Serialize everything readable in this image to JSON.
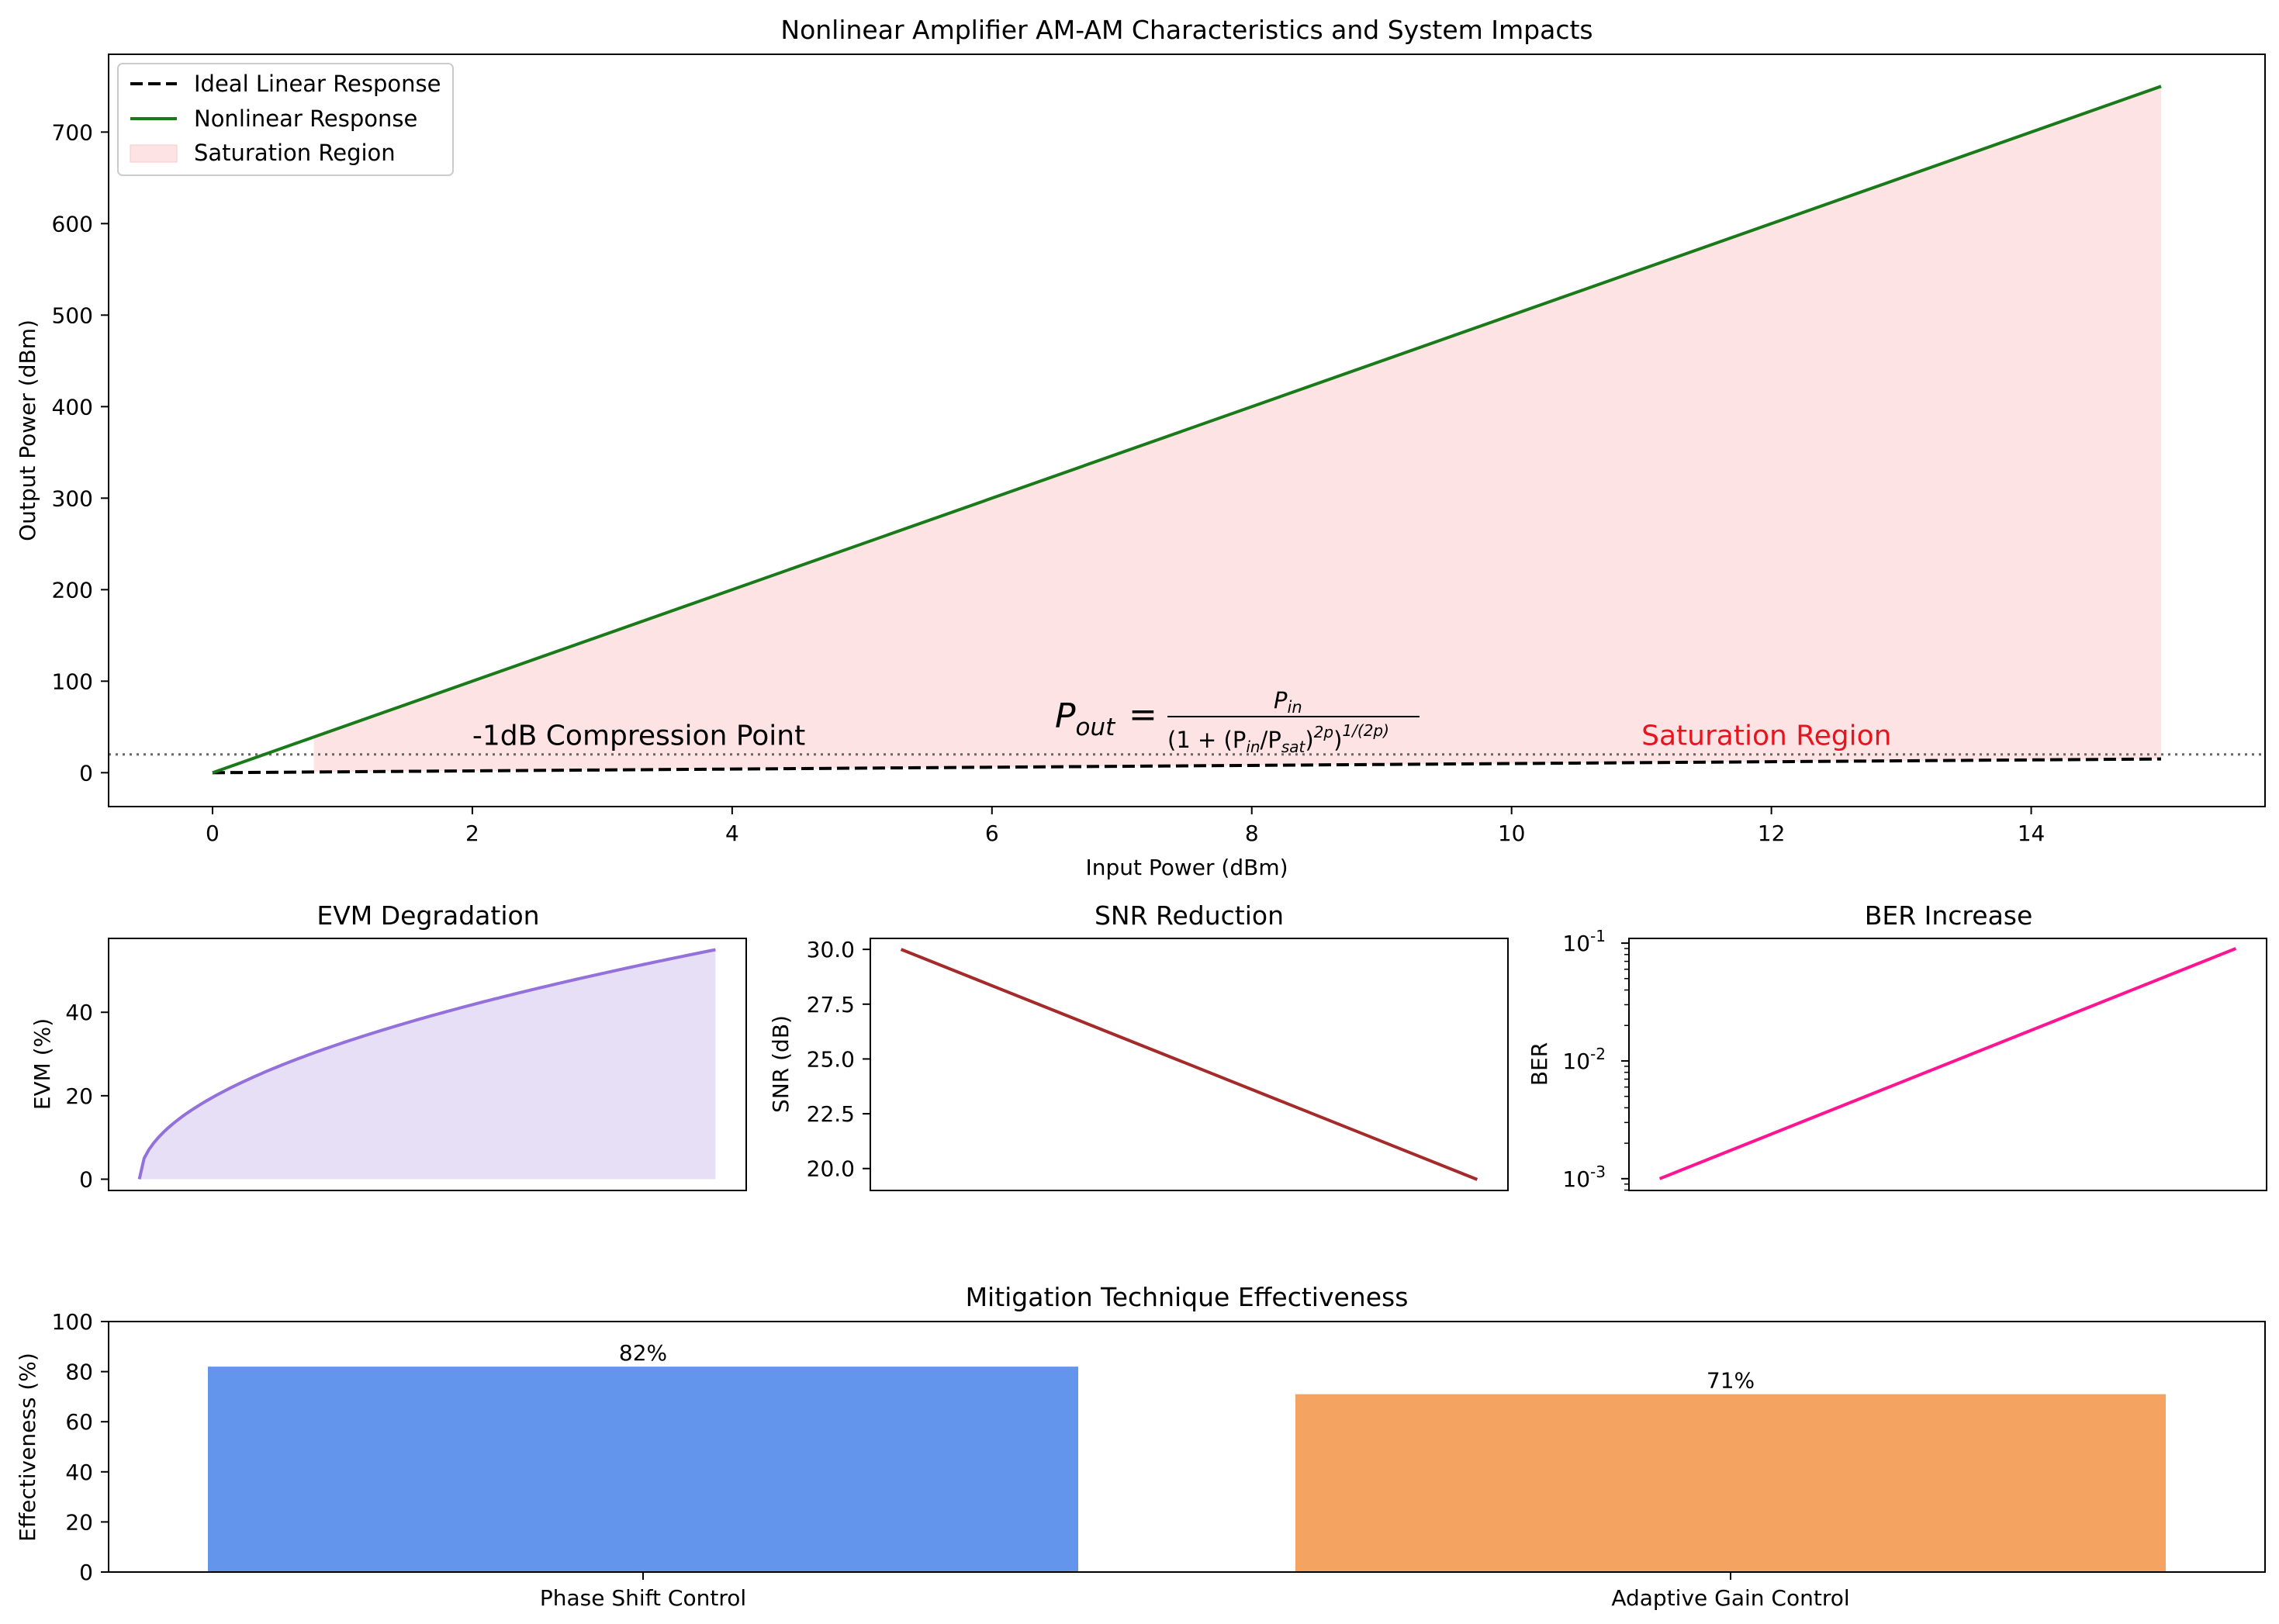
{
  "chart_data": [
    {
      "type": "line",
      "title": "Nonlinear Amplifier AM-AM Characteristics and System Impacts",
      "xlabel": "Input Power (dBm)",
      "ylabel": "Output Power (dBm)",
      "xlim": [
        -0.8,
        15.8
      ],
      "ylim": [
        -37,
        785
      ],
      "xticks": [
        0,
        2,
        4,
        6,
        8,
        10,
        12,
        14
      ],
      "yticks": [
        0,
        100,
        200,
        300,
        400,
        500,
        600,
        700
      ],
      "series": [
        {
          "name": "Ideal Linear Response",
          "x": [
            0,
            15
          ],
          "y": [
            0,
            15
          ],
          "color": "#000000",
          "style": "dashed"
        },
        {
          "name": "Nonlinear Response",
          "x": [
            0,
            15
          ],
          "y": [
            0,
            750
          ],
          "color": "#1a7a1a",
          "style": "solid"
        }
      ],
      "saturation_fill": {
        "name": "Saturation Region",
        "x_start": 0.78,
        "x_end": 15,
        "color": "#fde3e4"
      },
      "compression_line": {
        "y": 20,
        "color": "#666666"
      },
      "legend": [
        "Ideal Linear Response",
        "Nonlinear Response",
        "Saturation Region"
      ],
      "legend_position": "upper left",
      "annotations": {
        "compression": {
          "text": "-1dB Compression Point",
          "x": 2,
          "y": 20
        },
        "saturation": {
          "text": "Saturation Region",
          "x": 11,
          "y": 20,
          "color": "#e8141d"
        },
        "formula": {
          "lhs_p": "P",
          "lhs_sub": "out",
          "eq": "=",
          "num_p": "P",
          "num_sub": "in",
          "den_a": "(1 + (P",
          "den_in": "in",
          "den_b": "/P",
          "den_sat": "sat",
          "den_c": ")",
          "den_exp1": "2p",
          "den_d": ")",
          "den_exp2": "1/(2p)",
          "x": 6.5,
          "y": 40
        }
      }
    },
    {
      "type": "area",
      "title": "EVM Degradation",
      "xlabel": "",
      "ylabel": "EVM (%)",
      "xlim": [
        -0.8,
        15.8
      ],
      "ylim": [
        -2.7,
        57.7
      ],
      "yticks": [
        0,
        20,
        40
      ],
      "x_range": [
        0,
        15
      ],
      "y_max": 55,
      "curve": "sqrt",
      "color": "#9370db",
      "fill": "#e6dff5"
    },
    {
      "type": "line",
      "title": "SNR Reduction",
      "xlabel": "",
      "ylabel": "SNR (dB)",
      "xlim": [
        -0.8,
        15.8
      ],
      "ylim": [
        19.0,
        30.5
      ],
      "yticks": [
        20.0,
        22.5,
        25.0,
        27.5,
        30.0
      ],
      "ytick_labels": [
        "20.0",
        "22.5",
        "25.0",
        "27.5",
        "30.0"
      ],
      "x": [
        0,
        15
      ],
      "y": [
        30.0,
        19.5
      ],
      "color": "#a52a2a"
    },
    {
      "type": "line",
      "title": "BER Increase",
      "xlabel": "",
      "ylabel": "BER",
      "yscale": "log",
      "xlim": [
        -0.8,
        15.8
      ],
      "ylog10_lim": [
        -3.1,
        -0.96
      ],
      "ytick_exponents": [
        -3,
        -2,
        -1
      ],
      "ytick_base": "10",
      "x": [
        0,
        15
      ],
      "y": [
        0.001,
        0.09
      ],
      "color": "#ff1493"
    },
    {
      "type": "bar",
      "title": "Mitigation Technique Effectiveness",
      "xlabel": "",
      "ylabel": "Effectiveness (%)",
      "ylim": [
        0,
        100
      ],
      "yticks": [
        0,
        20,
        40,
        60,
        80,
        100
      ],
      "categories": [
        "Phase Shift Control",
        "Adaptive Gain Control"
      ],
      "values": [
        82,
        71
      ],
      "value_labels": [
        "82%",
        "71%"
      ],
      "colors": [
        "#6495ed",
        "#f4a460"
      ]
    }
  ]
}
